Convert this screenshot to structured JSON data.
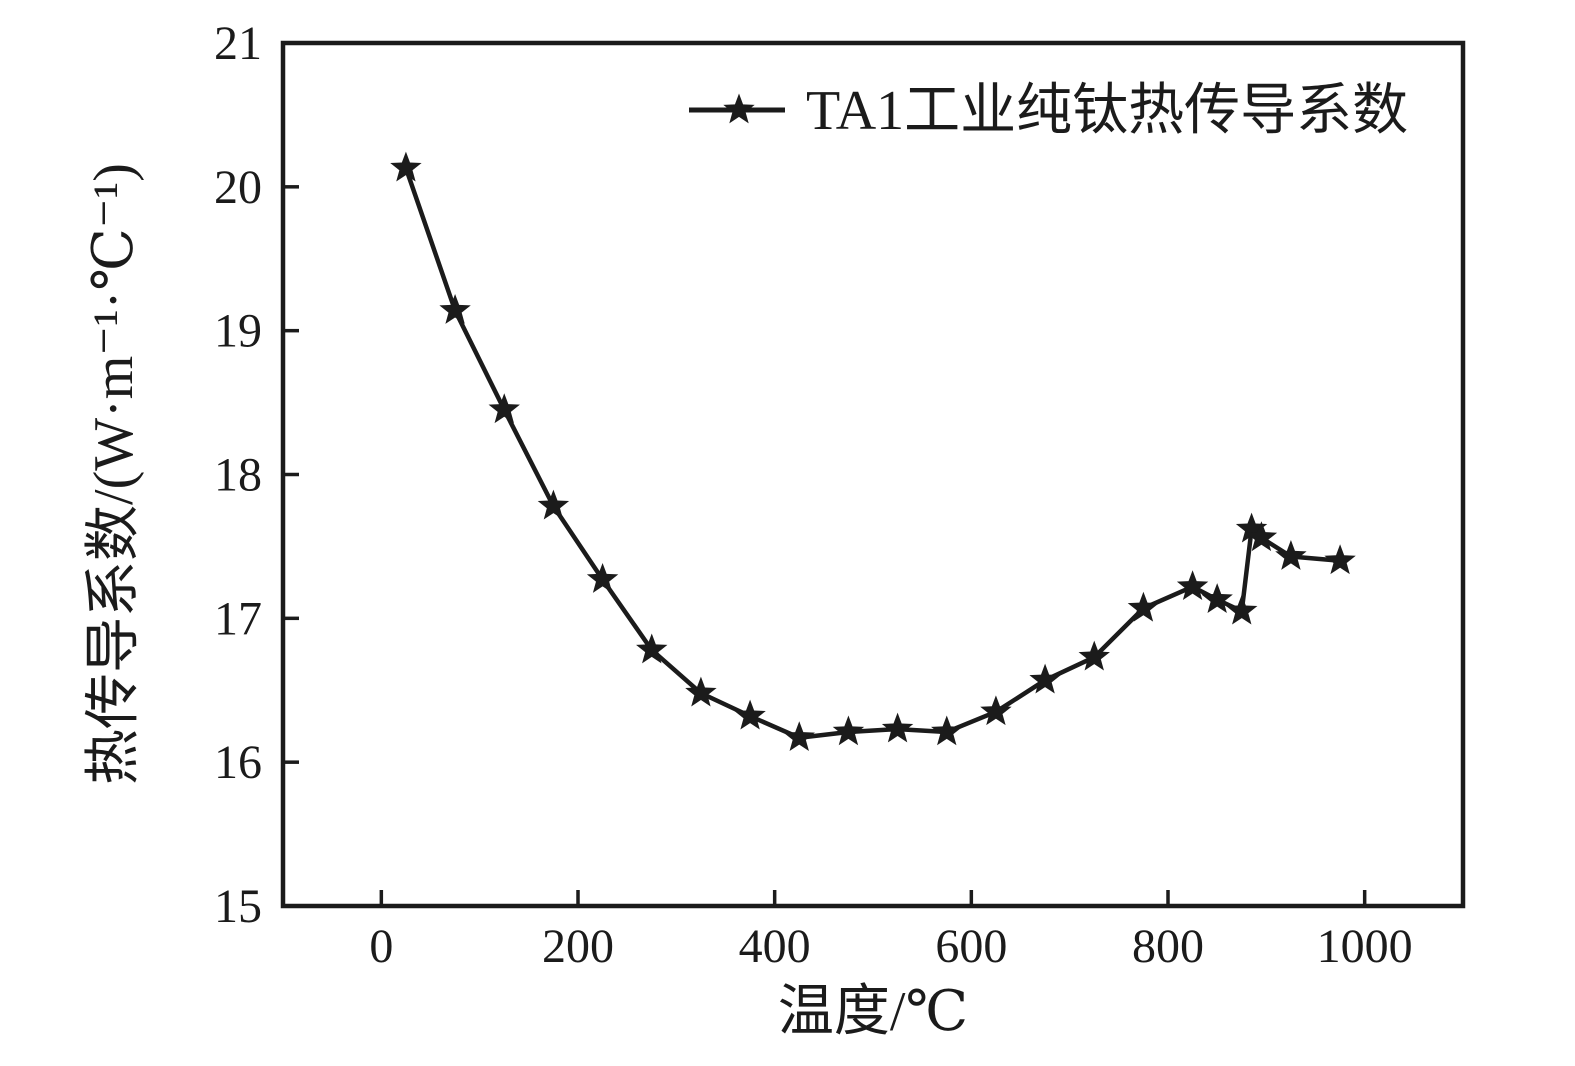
{
  "figure": {
    "background": "#ffffff",
    "ink_color": "#1b1b1b"
  },
  "chart_data": {
    "type": "line",
    "title": "",
    "xlabel": "温度/℃",
    "ylabel": "热传导系数/(W·m⁻¹·℃⁻¹)",
    "xlim": [
      -100,
      1100
    ],
    "ylim": [
      15,
      21
    ],
    "x_ticks": [
      0,
      200,
      400,
      600,
      800,
      1000
    ],
    "y_ticks": [
      15,
      16,
      17,
      18,
      19,
      20,
      21
    ],
    "grid": false,
    "legend": {
      "label": "TA1工业纯钛热传导系数",
      "marker": "star",
      "position": "top-center-inside"
    },
    "series": [
      {
        "name": "TA1工业纯钛热传导系数",
        "marker": "star",
        "color": "#1b1b1b",
        "x": [
          25,
          75,
          125,
          175,
          225,
          275,
          325,
          375,
          425,
          475,
          525,
          575,
          625,
          675,
          725,
          775,
          825,
          850,
          875,
          885,
          895,
          925,
          975
        ],
        "y": [
          20.13,
          19.14,
          18.45,
          17.78,
          17.27,
          16.78,
          16.48,
          16.32,
          16.17,
          16.21,
          16.23,
          16.21,
          16.35,
          16.57,
          16.73,
          17.07,
          17.22,
          17.13,
          17.05,
          17.62,
          17.56,
          17.43,
          17.4
        ]
      }
    ]
  }
}
